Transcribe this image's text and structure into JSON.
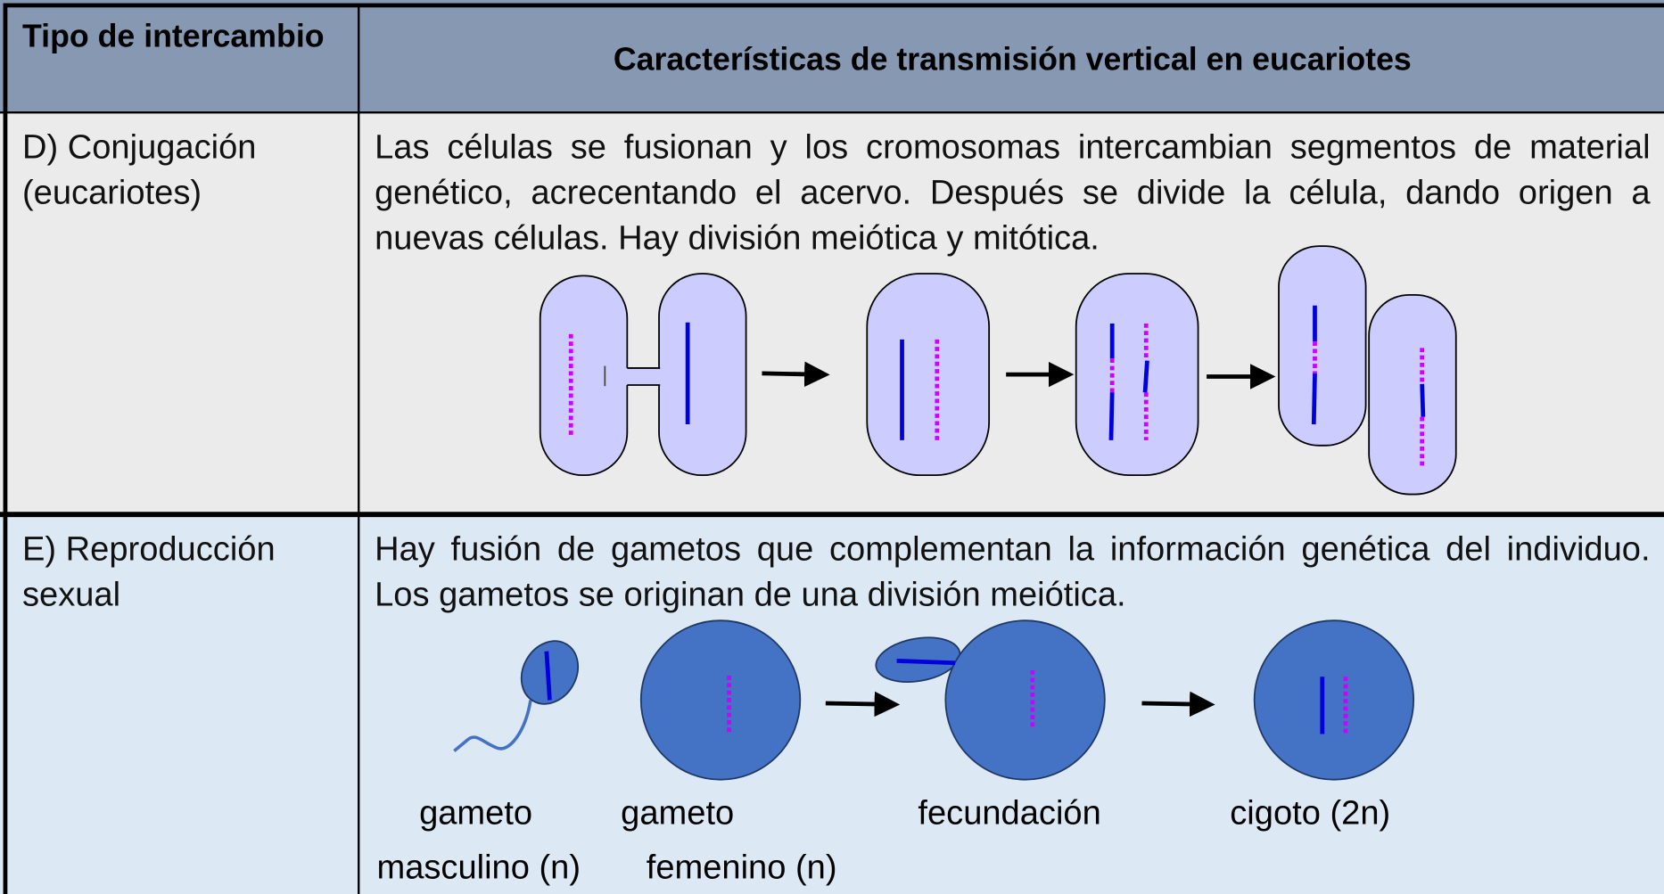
{
  "table": {
    "header": [
      "Tipo de intercambio",
      "Características de transmisión vertical en eucariotes"
    ],
    "rows": [
      {
        "type": "D) Conjugación (eucariotes)",
        "description": "Las células se fusionan y los cromosomas intercambian segmentos de material genético, acrecentando el acervo. Después se divide la célula, dando origen a nuevas células. Hay división meiótica y mitótica."
      },
      {
        "type": "E) Reproducción sexual",
        "description": "Hay fusión de gametos que complementan la información genética del individuo. Los gametos se originan de una división meiótica.",
        "labels": [
          [
            "gameto",
            "masculino (n)"
          ],
          [
            "gameto",
            "femenino (n)"
          ],
          [
            "fecundación"
          ],
          [
            "cigoto (2n)"
          ]
        ]
      }
    ]
  }
}
